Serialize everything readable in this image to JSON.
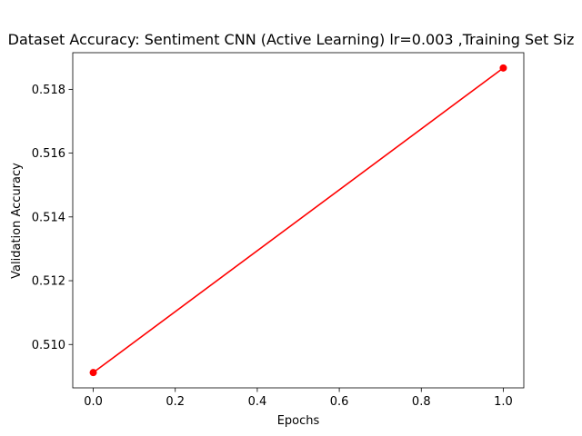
{
  "chart_data": {
    "type": "line",
    "title": "Dataset Accuracy: Sentiment CNN (Active Learning) lr=0.003 ,Training Set Siz",
    "xlabel": "Epochs",
    "ylabel": "Validation Accuracy",
    "x": [
      0.0,
      1.0
    ],
    "series": [
      {
        "values": [
          0.50912,
          0.51867
        ],
        "color": "#ff0000",
        "marker": "circle"
      }
    ],
    "xlim": [
      -0.05,
      1.05
    ],
    "ylim": [
      0.50864,
      0.51915
    ],
    "xticks": [
      0.0,
      0.2,
      0.4,
      0.6,
      0.8,
      1.0
    ],
    "xtick_labels": [
      "0.0",
      "0.2",
      "0.4",
      "0.6",
      "0.8",
      "1.0"
    ],
    "yticks": [
      0.51,
      0.512,
      0.514,
      0.516,
      0.518
    ],
    "ytick_labels": [
      "0.510",
      "0.512",
      "0.514",
      "0.516",
      "0.518"
    ],
    "grid": false,
    "legend": "none"
  }
}
